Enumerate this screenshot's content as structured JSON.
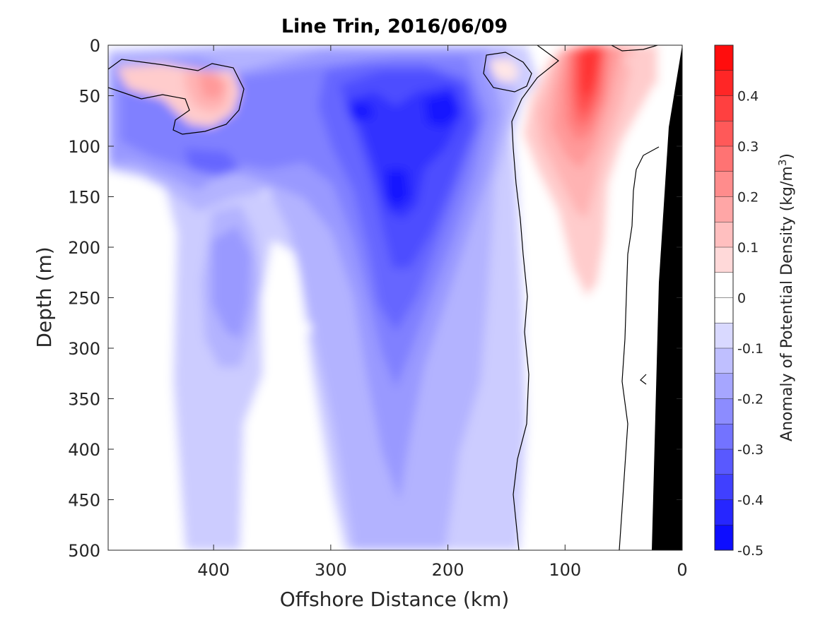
{
  "chart_data": {
    "type": "heatmap",
    "title": "Line Trin, 2016/06/09",
    "xlabel": "Offshore Distance (km)",
    "ylabel": "Depth (m)",
    "colorbar_label": "Anomaly of Potential Density (kg/m",
    "colorbar_label_sup": "3",
    "colorbar_label_end": ")",
    "xlim": [
      490,
      0
    ],
    "ylim": [
      0,
      500
    ],
    "x_ticks": [
      "400",
      "300",
      "200",
      "100",
      "0"
    ],
    "x_tick_values": [
      400,
      300,
      200,
      100,
      0
    ],
    "y_ticks": [
      "0",
      "50",
      "100",
      "150",
      "200",
      "250",
      "300",
      "350",
      "400",
      "450",
      "500"
    ],
    "y_tick_values": [
      0,
      50,
      100,
      150,
      200,
      250,
      300,
      350,
      400,
      450,
      500
    ],
    "clim": [
      -0.5,
      0.5
    ],
    "colorbar_ticks": [
      "-0.5",
      "-0.4",
      "-0.3",
      "-0.2",
      "-0.1",
      "0",
      "0.1",
      "0.2",
      "0.3",
      "0.4"
    ],
    "colorbar_tick_values": [
      -0.5,
      -0.4,
      -0.3,
      -0.2,
      -0.1,
      0,
      0.1,
      0.2,
      0.3,
      0.4
    ],
    "levels": [
      -0.5,
      -0.45,
      -0.4,
      -0.35,
      -0.3,
      -0.25,
      -0.2,
      -0.15,
      -0.1,
      -0.05,
      0,
      0.05,
      0.1,
      0.15,
      0.2,
      0.25,
      0.3,
      0.35,
      0.4,
      0.45,
      0.5
    ],
    "colormap": "blue-white-red",
    "contour_line_color": "#000000",
    "bathymetry_color": "#000000",
    "features": [
      {
        "kind": "negative anomaly core",
        "x_km": 245,
        "depth_m": 140,
        "value": -0.4
      },
      {
        "kind": "negative anomaly core",
        "x_km": 200,
        "depth_m": 60,
        "value": -0.45
      },
      {
        "kind": "positive anomaly core",
        "x_km": 80,
        "depth_m": 50,
        "value": 0.4
      },
      {
        "kind": "positive anomaly core",
        "x_km": 400,
        "depth_m": 35,
        "value": 0.2
      }
    ]
  }
}
